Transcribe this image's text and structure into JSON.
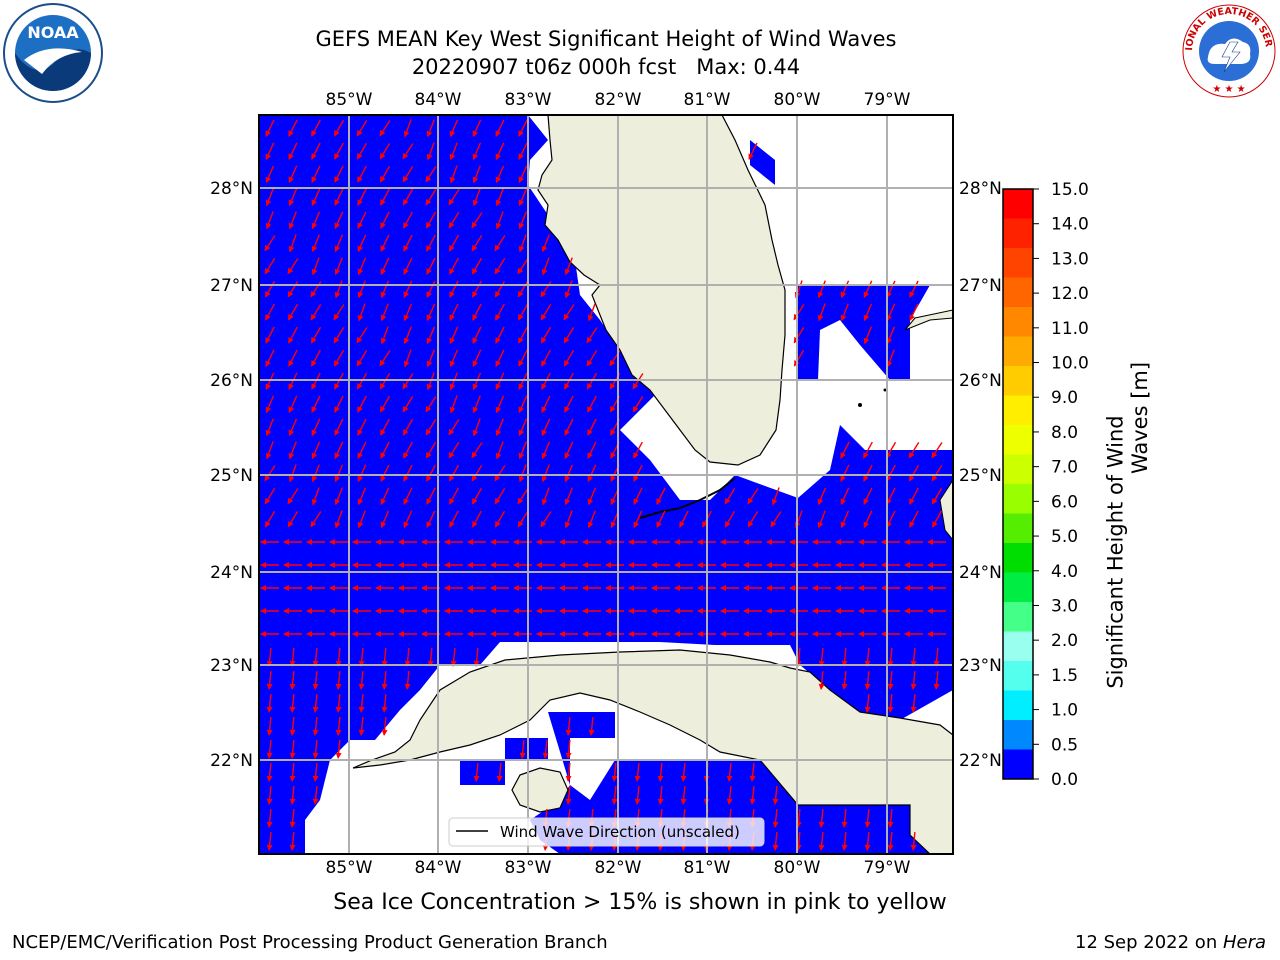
{
  "title": {
    "line1": "GEFS MEAN Key West Significant Height of Wind Waves",
    "line2": "20220907 t06z 000h fcst   Max: 0.44"
  },
  "map": {
    "lon_ticks": [
      "85°W",
      "84°W",
      "83°W",
      "82°W",
      "81°W",
      "80°W",
      "79°W"
    ],
    "lat_ticks": [
      "28°N",
      "27°N",
      "26°N",
      "25°N",
      "24°N",
      "23°N",
      "22°N"
    ],
    "colors": {
      "water": "#0000ff",
      "land": "#eeeedc",
      "arrow": "#ff0000",
      "grid": "#b0b0b0"
    },
    "legend_label": "Wind Wave Direction (unscaled)"
  },
  "colorbar": {
    "title_line1": "Significant Height of Wind",
    "title_line2": "Waves [m]",
    "ticks": [
      "15.0",
      "14.0",
      "13.0",
      "12.0",
      "11.0",
      "10.0",
      "9.0",
      "8.0",
      "7.0",
      "6.0",
      "5.0",
      "4.0",
      "3.0",
      "2.0",
      "1.5",
      "1.0",
      "0.5",
      "0.0"
    ],
    "colors": [
      "#ff0000",
      "#ff2200",
      "#ff4400",
      "#ff6600",
      "#ff8800",
      "#ffaa00",
      "#ffcc00",
      "#ffee00",
      "#eeff00",
      "#ccff00",
      "#99ff00",
      "#55ee00",
      "#00dd00",
      "#00ee44",
      "#44ff88",
      "#99ffee",
      "#55ffee",
      "#00eeff",
      "#0088ff",
      "#0000ff"
    ]
  },
  "note": "Sea Ice Concentration > 15% is shown in pink to yellow",
  "footer": {
    "left": "NCEP/EMC/Verification Post Processing Product Generation Branch",
    "date": "12 Sep 2022 on ",
    "host": "Hera"
  },
  "logos": {
    "noaa": {
      "text": "NOAA",
      "icon": "noaa-logo"
    },
    "nws": {
      "text": "NATIONAL WEATHER SERVICE",
      "icon": "nws-logo"
    }
  }
}
